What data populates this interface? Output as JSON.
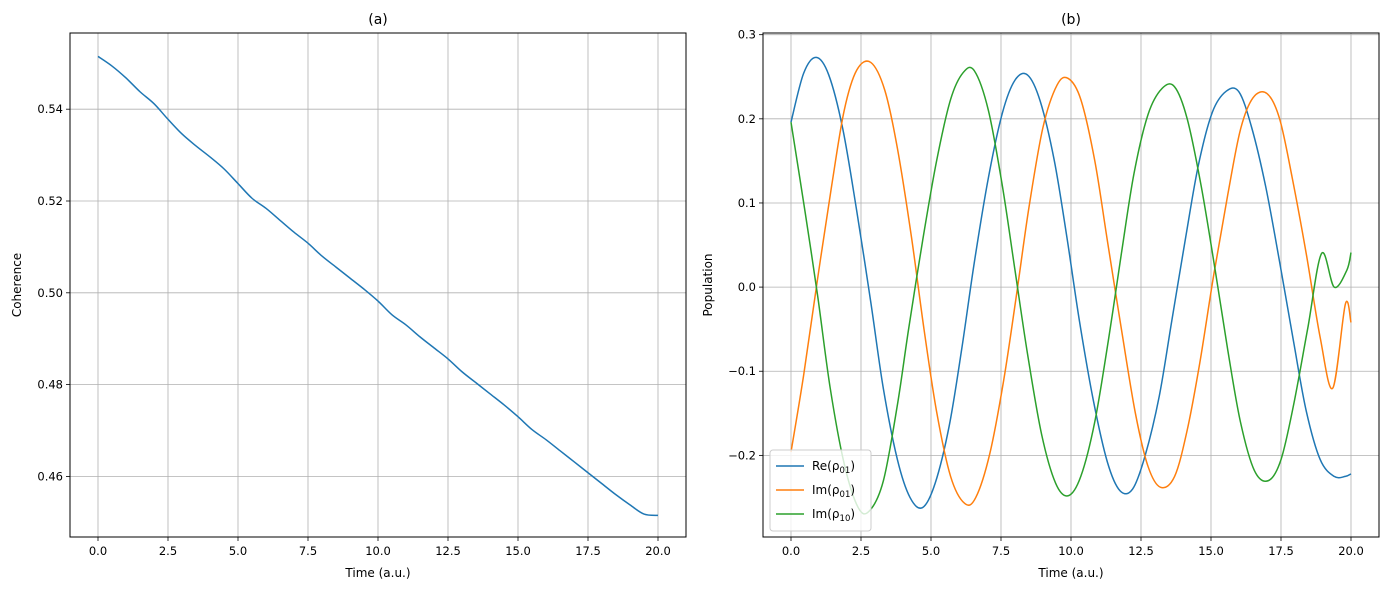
{
  "chart_data": [
    {
      "type": "line",
      "title": "(a)",
      "xlabel": "Time (a.u.)",
      "ylabel": "Coherence",
      "xlim": [
        -1.0,
        21.0
      ],
      "ylim": [
        0.4468,
        0.5566
      ],
      "xticks": [
        0,
        2.5,
        5,
        7.5,
        10,
        12.5,
        15,
        17.5,
        20
      ],
      "xtick_labels": [
        "0.0",
        "2.5",
        "5.0",
        "7.5",
        "10.0",
        "12.5",
        "15.0",
        "17.5",
        "20.0"
      ],
      "yticks": [
        0.46,
        0.48,
        0.5,
        0.52,
        0.54
      ],
      "ytick_labels": [
        "0.46",
        "0.48",
        "0.50",
        "0.52",
        "0.54"
      ],
      "grid": true,
      "series": [
        {
          "color": "#1f77b4",
          "x": [
            0,
            0.5,
            1,
            1.5,
            2,
            2.5,
            3,
            3.5,
            4,
            4.5,
            5,
            5.5,
            6,
            6.5,
            7,
            7.5,
            8,
            8.5,
            9,
            9.5,
            10,
            10.5,
            11,
            11.5,
            12,
            12.5,
            13,
            13.5,
            14,
            14.5,
            15,
            15.5,
            16,
            16.5,
            17,
            17.5,
            18,
            18.5,
            19,
            19.5,
            20
          ],
          "y": [
            0.5515,
            0.5494,
            0.5468,
            0.5438,
            0.5412,
            0.5378,
            0.5346,
            0.532,
            0.5296,
            0.527,
            0.5238,
            0.5206,
            0.5184,
            0.5158,
            0.5132,
            0.5108,
            0.508,
            0.5056,
            0.5032,
            0.5008,
            0.4982,
            0.4952,
            0.493,
            0.4904,
            0.488,
            0.4856,
            0.4828,
            0.4804,
            0.478,
            0.4756,
            0.473,
            0.4702,
            0.468,
            0.4656,
            0.4632,
            0.4608,
            0.4584,
            0.456,
            0.4538,
            0.4518,
            0.4515
          ]
        }
      ]
    },
    {
      "type": "line",
      "title": "(b)",
      "xlabel": "Time (a.u.)",
      "ylabel": "Population",
      "xlim": [
        -1.0,
        21.0
      ],
      "ylim": [
        -0.297,
        0.302
      ],
      "xticks": [
        0,
        2.5,
        5,
        7.5,
        10,
        12.5,
        15,
        17.5,
        20
      ],
      "xtick_labels": [
        "0.0",
        "2.5",
        "5.0",
        "7.5",
        "10.0",
        "12.5",
        "15.0",
        "17.5",
        "20.0"
      ],
      "yticks": [
        -0.2,
        -0.1,
        0.0,
        0.1,
        0.2,
        0.3
      ],
      "ytick_labels": [
        "−0.2",
        "−0.1",
        "0.0",
        "0.1",
        "0.2",
        "0.3"
      ],
      "grid": true,
      "legend_position": "lower-left",
      "series": [
        {
          "name": "Re(ρ01)",
          "legend_main": "Re(ρ",
          "legend_sub": "01",
          "color": "#1f77b4",
          "x": [
            0,
            0.45,
            0.9,
            1.35,
            1.85,
            2.35,
            2.85,
            3.3,
            3.8,
            4.25,
            4.7,
            5.15,
            5.65,
            6.1,
            6.55,
            7.05,
            7.55,
            8.0,
            8.45,
            8.9,
            9.4,
            9.85,
            10.3,
            10.8,
            11.3,
            11.75,
            12.2,
            12.65,
            13.15,
            13.6,
            14.1,
            14.55,
            15.05,
            15.55,
            16.0,
            16.45,
            16.95,
            17.45,
            17.95,
            18.4,
            18.9,
            19.4,
            19.8,
            20.0
          ],
          "y": [
            0.196,
            0.254,
            0.273,
            0.252,
            0.188,
            0.09,
            -0.018,
            -0.121,
            -0.205,
            -0.25,
            -0.262,
            -0.233,
            -0.165,
            -0.073,
            0.03,
            0.13,
            0.207,
            0.246,
            0.252,
            0.221,
            0.151,
            0.06,
            -0.04,
            -0.135,
            -0.208,
            -0.242,
            -0.24,
            -0.2,
            -0.13,
            -0.04,
            0.06,
            0.145,
            0.208,
            0.233,
            0.232,
            0.19,
            0.12,
            0.03,
            -0.065,
            -0.147,
            -0.205,
            -0.225,
            -0.225,
            -0.222
          ]
        },
        {
          "name": "Im(ρ01)",
          "legend_main": "Im(ρ",
          "legend_sub": "01",
          "color": "#ff7f0e",
          "x": [
            0,
            0.45,
            0.95,
            1.45,
            1.9,
            2.35,
            2.85,
            3.35,
            3.8,
            4.3,
            4.75,
            5.2,
            5.7,
            6.2,
            6.6,
            7.1,
            7.6,
            8.05,
            8.5,
            9.0,
            9.5,
            9.9,
            10.35,
            10.85,
            11.3,
            11.8,
            12.3,
            12.75,
            13.2,
            13.7,
            14.15,
            14.6,
            15.1,
            15.6,
            16.05,
            16.5,
            17.0,
            17.45,
            17.9,
            18.4,
            18.9,
            19.35,
            19.8,
            20.0
          ],
          "y": [
            -0.196,
            -0.105,
            0.01,
            0.12,
            0.21,
            0.258,
            0.267,
            0.234,
            0.165,
            0.06,
            -0.05,
            -0.148,
            -0.225,
            -0.257,
            -0.25,
            -0.198,
            -0.11,
            -0.01,
            0.095,
            0.19,
            0.24,
            0.248,
            0.223,
            0.15,
            0.055,
            -0.05,
            -0.15,
            -0.213,
            -0.238,
            -0.225,
            -0.17,
            -0.09,
            0.015,
            0.11,
            0.187,
            0.225,
            0.23,
            0.2,
            0.13,
            0.04,
            -0.06,
            -0.12,
            -0.02,
            -0.042
          ]
        },
        {
          "name": "Im(ρ10)",
          "legend_main": "Im(ρ",
          "legend_sub": "10",
          "color": "#2ca02c",
          "x": [
            0,
            0.5,
            0.95,
            1.4,
            1.9,
            2.4,
            2.8,
            3.3,
            3.8,
            4.2,
            4.7,
            5.2,
            5.7,
            6.15,
            6.55,
            7.05,
            7.55,
            8.0,
            8.45,
            8.95,
            9.45,
            9.9,
            10.35,
            10.85,
            11.35,
            11.8,
            12.25,
            12.75,
            13.25,
            13.7,
            14.15,
            14.65,
            15.15,
            15.6,
            16.05,
            16.55,
            17.05,
            17.5,
            17.95,
            18.45,
            18.95,
            19.4,
            19.85,
            20.0
          ],
          "y": [
            0.196,
            0.09,
            -0.01,
            -0.12,
            -0.21,
            -0.262,
            -0.266,
            -0.23,
            -0.14,
            -0.05,
            0.055,
            0.15,
            0.223,
            0.255,
            0.257,
            0.21,
            0.12,
            0.02,
            -0.08,
            -0.175,
            -0.233,
            -0.248,
            -0.225,
            -0.16,
            -0.06,
            0.04,
            0.135,
            0.205,
            0.236,
            0.238,
            0.2,
            0.12,
            0.02,
            -0.075,
            -0.16,
            -0.218,
            -0.23,
            -0.205,
            -0.14,
            -0.05,
            0.04,
            0.0,
            0.02,
            0.041
          ]
        }
      ]
    }
  ]
}
